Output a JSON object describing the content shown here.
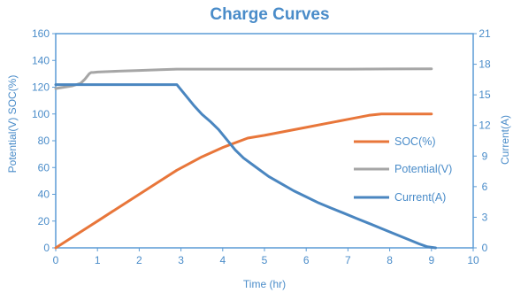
{
  "colors": {
    "accent": "#4A8CC9",
    "soc": "#E8763A",
    "potential": "#A6A6A6",
    "current": "#4A86C0",
    "axis_text": "#4A8CC9",
    "axis_line": "#5B9BD5"
  },
  "chart_data": {
    "type": "line",
    "title": "Charge Curves",
    "xlabel": "Time (hr)",
    "ylabel_left": "Potential(V)  SOC(%)",
    "ylabel_right": "Current(A)",
    "xlim": [
      0,
      10
    ],
    "ylim_left": [
      0,
      160
    ],
    "ylim_right": [
      0,
      21
    ],
    "x_ticks": [
      "0",
      "1",
      "2",
      "3",
      "4",
      "5",
      "6",
      "7",
      "8",
      "9",
      "10"
    ],
    "y_left_ticks": [
      "0",
      "20",
      "40",
      "60",
      "80",
      "100",
      "120",
      "140",
      "160"
    ],
    "y_right_ticks": [
      "0",
      "3",
      "6",
      "9",
      "12",
      "15",
      "18",
      "21"
    ],
    "grid": false,
    "legend_position": "right",
    "series": [
      {
        "name": "SOC(%)",
        "axis": "left",
        "color_key": "soc",
        "x": [
          0,
          0.5,
          1,
          1.5,
          2,
          2.5,
          2.9,
          3.5,
          4,
          4.6,
          5,
          5.5,
          6,
          6.5,
          7,
          7.5,
          7.8,
          8,
          8.5,
          9
        ],
        "y": [
          0,
          10,
          20,
          30,
          40,
          50,
          58,
          68,
          75,
          82,
          84,
          87,
          90,
          93,
          96,
          99,
          100,
          100,
          100,
          100
        ]
      },
      {
        "name": "Potential(V)",
        "axis": "left",
        "color_key": "potential",
        "x": [
          0,
          0.2,
          0.4,
          0.6,
          0.7,
          0.8,
          0.85,
          0.9,
          1.0,
          1.5,
          2,
          2.5,
          2.9,
          3.5,
          4,
          5,
          6,
          7,
          8,
          9
        ],
        "y": [
          119,
          120,
          121,
          123,
          126,
          130,
          131,
          131,
          131.3,
          132,
          132.5,
          133,
          133.5,
          133.5,
          133.5,
          133.5,
          133.5,
          133.5,
          133.6,
          133.7
        ]
      },
      {
        "name": "Current(A)",
        "axis": "right",
        "color_key": "current",
        "x": [
          0,
          0.5,
          1,
          1.5,
          2,
          2.5,
          2.9,
          3.1,
          3.3,
          3.5,
          3.7,
          3.9,
          4.1,
          4.3,
          4.5,
          4.8,
          5.1,
          5.4,
          5.7,
          6,
          6.3,
          6.6,
          6.9,
          7.2,
          7.5,
          7.8,
          8.1,
          8.4,
          8.7,
          8.9,
          9.1
        ],
        "y": [
          16,
          16,
          16,
          16,
          16,
          16,
          16,
          15.0,
          14.0,
          13.1,
          12.4,
          11.6,
          10.6,
          9.6,
          8.8,
          7.9,
          7.0,
          6.3,
          5.6,
          5.0,
          4.4,
          3.9,
          3.4,
          2.9,
          2.4,
          1.9,
          1.4,
          0.9,
          0.4,
          0.1,
          0
        ]
      }
    ]
  }
}
